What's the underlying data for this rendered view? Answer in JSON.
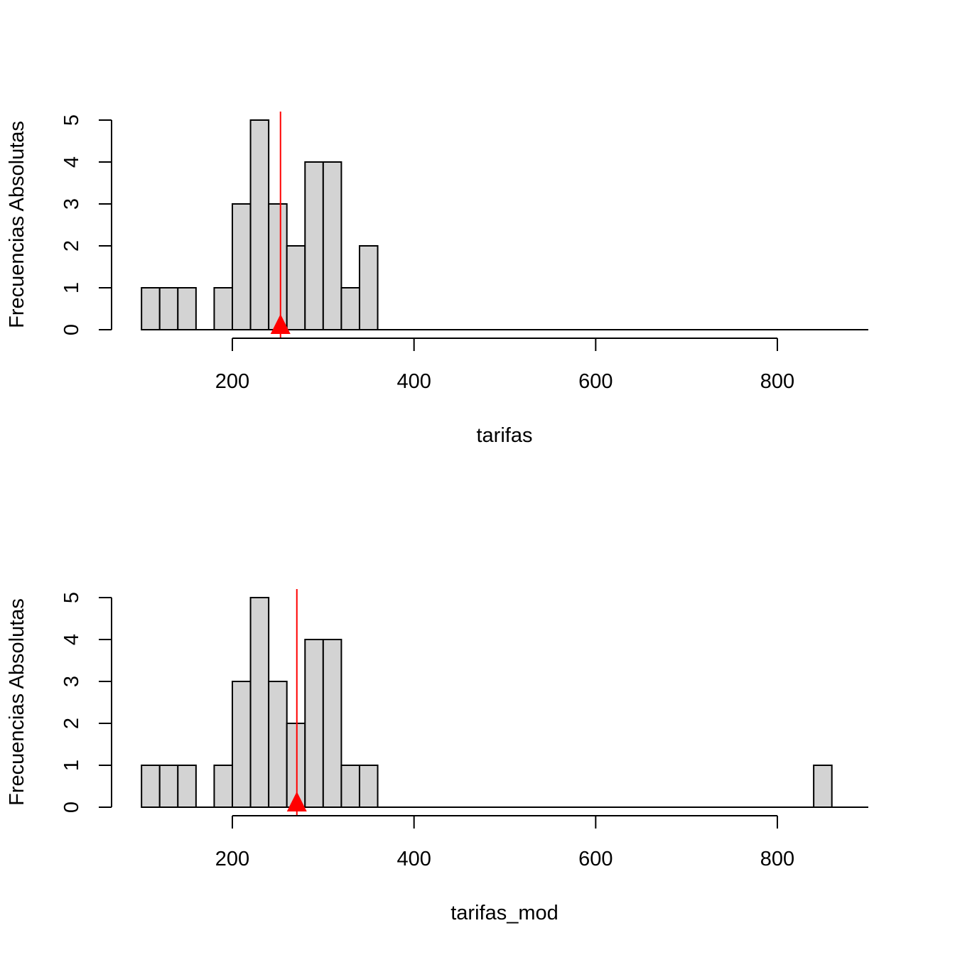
{
  "chart_data": [
    {
      "type": "bar",
      "xlabel": "tarifas",
      "ylabel": "Frecuencias Absolutas",
      "xlim": [
        100,
        900
      ],
      "ylim": [
        0,
        5
      ],
      "xticks": [
        200,
        400,
        600,
        800
      ],
      "yticks": [
        0,
        1,
        2,
        3,
        4,
        5
      ],
      "bin_width": 20,
      "bins": [
        {
          "x0": 100,
          "x1": 120,
          "count": 1
        },
        {
          "x0": 120,
          "x1": 140,
          "count": 1
        },
        {
          "x0": 140,
          "x1": 160,
          "count": 1
        },
        {
          "x0": 160,
          "x1": 180,
          "count": 0
        },
        {
          "x0": 180,
          "x1": 200,
          "count": 1
        },
        {
          "x0": 200,
          "x1": 220,
          "count": 3
        },
        {
          "x0": 220,
          "x1": 240,
          "count": 5
        },
        {
          "x0": 240,
          "x1": 260,
          "count": 3
        },
        {
          "x0": 260,
          "x1": 280,
          "count": 2
        },
        {
          "x0": 280,
          "x1": 300,
          "count": 4
        },
        {
          "x0": 300,
          "x1": 320,
          "count": 4
        },
        {
          "x0": 320,
          "x1": 340,
          "count": 1
        },
        {
          "x0": 340,
          "x1": 360,
          "count": 2
        }
      ],
      "mean_marker": 253,
      "bar_fill": "#d3d3d3",
      "marker_color": "#ff0000",
      "grid": false
    },
    {
      "type": "bar",
      "xlabel": "tarifas_mod",
      "ylabel": "Frecuencias Absolutas",
      "xlim": [
        100,
        900
      ],
      "ylim": [
        0,
        5
      ],
      "xticks": [
        200,
        400,
        600,
        800
      ],
      "yticks": [
        0,
        1,
        2,
        3,
        4,
        5
      ],
      "bin_width": 20,
      "bins": [
        {
          "x0": 100,
          "x1": 120,
          "count": 1
        },
        {
          "x0": 120,
          "x1": 140,
          "count": 1
        },
        {
          "x0": 140,
          "x1": 160,
          "count": 1
        },
        {
          "x0": 160,
          "x1": 180,
          "count": 0
        },
        {
          "x0": 180,
          "x1": 200,
          "count": 1
        },
        {
          "x0": 200,
          "x1": 220,
          "count": 3
        },
        {
          "x0": 220,
          "x1": 240,
          "count": 5
        },
        {
          "x0": 240,
          "x1": 260,
          "count": 3
        },
        {
          "x0": 260,
          "x1": 280,
          "count": 2
        },
        {
          "x0": 280,
          "x1": 300,
          "count": 4
        },
        {
          "x0": 300,
          "x1": 320,
          "count": 4
        },
        {
          "x0": 320,
          "x1": 340,
          "count": 1
        },
        {
          "x0": 340,
          "x1": 360,
          "count": 1
        },
        {
          "x0": 840,
          "x1": 860,
          "count": 1
        }
      ],
      "mean_marker": 271,
      "bar_fill": "#d3d3d3",
      "marker_color": "#ff0000",
      "grid": false
    }
  ]
}
